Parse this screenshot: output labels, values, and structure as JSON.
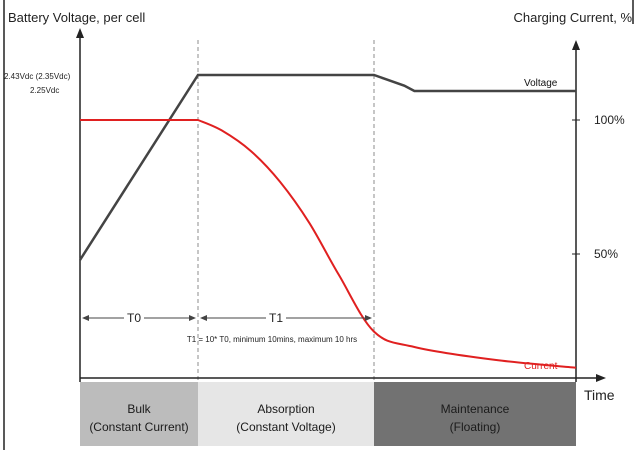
{
  "chart_data": {
    "type": "line",
    "left_axis_label": "Battery Voltage, per cell",
    "right_axis_label": "Charging Current, %",
    "x_axis_label": "Time",
    "left_ticks": [
      "2.43Vdc (2.35Vdc)",
      "2.25Vdc"
    ],
    "right_ticks": [
      "100%",
      "50%"
    ],
    "series": [
      {
        "name": "Voltage",
        "label": "Voltage",
        "color": "#444444",
        "x": [
          0.0,
          1.0,
          1.0,
          2.5,
          2.55,
          2.65,
          2.7,
          3.5
        ],
        "y": [
          0.48,
          1.0,
          1.0,
          1.0,
          0.99,
          0.97,
          0.955,
          0.955
        ]
      },
      {
        "name": "Current",
        "label": "Current",
        "color": "#e02020",
        "x": [
          0.0,
          1.0,
          1.2,
          1.45,
          1.7,
          1.95,
          2.2,
          2.5,
          2.7,
          3.1,
          3.5
        ],
        "y": [
          1.0,
          1.0,
          0.96,
          0.88,
          0.76,
          0.6,
          0.4,
          0.18,
          0.12,
          0.07,
          0.04
        ]
      }
    ],
    "phases": [
      {
        "id": "bulk",
        "line1": "Bulk",
        "line2": "(Constant Current)",
        "color": "#bcbcbc"
      },
      {
        "id": "absorption",
        "line1": "Absorption",
        "line2": "(Constant Voltage)",
        "color": "#e6e6e6"
      },
      {
        "id": "maintenance",
        "line1": "Maintenance",
        "line2": "(Floating)",
        "color": "#727272"
      }
    ],
    "annotations": {
      "t0": "T0",
      "t1": "T1",
      "t1_note": "T1 = 10* T0, minimum 10mins, maximum 10 hrs"
    }
  }
}
